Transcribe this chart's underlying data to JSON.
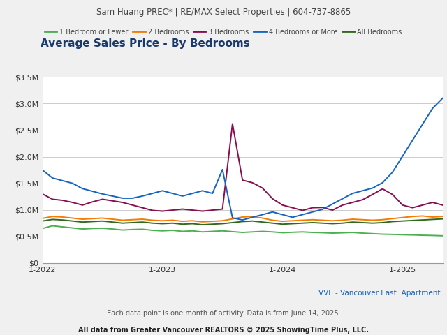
{
  "header": "Sam Huang PREC* | RE/MAX Select Properties | 604-737-8865",
  "title": "Average Sales Price - By Bedrooms",
  "footer1": "VVE - Vancouver East: Apartment",
  "footer2": "Each data point is one month of activity. Data is from June 14, 2025.",
  "footer3": "All data from Greater Vancouver REALTORS © 2025 ShowingTime Plus, LLC.",
  "legend": [
    "1 Bedroom or Fewer",
    "2 Bedrooms",
    "3 Bedrooms",
    "4 Bedrooms or More",
    "All Bedrooms"
  ],
  "colors": [
    "#4caf50",
    "#f57c00",
    "#880e4f",
    "#1565c0",
    "#33691e"
  ],
  "x_ticks_labels": [
    "1-2022",
    "1-2023",
    "1-2024",
    "1-2025"
  ],
  "ylim": [
    0,
    3500000
  ],
  "yticks": [
    0,
    500000,
    1000000,
    1500000,
    2000000,
    2500000,
    3000000,
    3500000
  ],
  "ytick_labels": [
    "$0",
    "$0.5M",
    "$1.0M",
    "$1.5M",
    "$2.0M",
    "$2.5M",
    "$3.0M",
    "$3.5M"
  ],
  "series": {
    "1br": [
      650000,
      700000,
      680000,
      660000,
      640000,
      650000,
      655000,
      640000,
      620000,
      630000,
      635000,
      615000,
      605000,
      615000,
      595000,
      605000,
      585000,
      595000,
      605000,
      590000,
      575000,
      585000,
      595000,
      585000,
      570000,
      578000,
      585000,
      575000,
      570000,
      562000,
      568000,
      575000,
      562000,
      552000,
      542000,
      538000,
      532000,
      528000,
      522000,
      518000,
      512000
    ],
    "2br": [
      840000,
      875000,
      865000,
      845000,
      825000,
      835000,
      845000,
      825000,
      805000,
      815000,
      825000,
      805000,
      795000,
      805000,
      785000,
      795000,
      775000,
      785000,
      795000,
      830000,
      865000,
      875000,
      845000,
      805000,
      785000,
      795000,
      805000,
      815000,
      805000,
      795000,
      805000,
      825000,
      815000,
      805000,
      815000,
      835000,
      855000,
      875000,
      885000,
      865000,
      875000
    ],
    "3br": [
      1300000,
      1200000,
      1180000,
      1140000,
      1090000,
      1150000,
      1200000,
      1170000,
      1140000,
      1090000,
      1040000,
      990000,
      975000,
      995000,
      1015000,
      995000,
      975000,
      995000,
      1015000,
      2620000,
      1560000,
      1510000,
      1410000,
      1210000,
      1090000,
      1040000,
      990000,
      1040000,
      1045000,
      995000,
      1090000,
      1140000,
      1190000,
      1290000,
      1395000,
      1290000,
      1090000,
      1040000,
      1090000,
      1140000,
      1090000
    ],
    "4br": [
      1750000,
      1600000,
      1550000,
      1500000,
      1400000,
      1350000,
      1300000,
      1260000,
      1220000,
      1220000,
      1260000,
      1310000,
      1360000,
      1310000,
      1260000,
      1310000,
      1360000,
      1310000,
      1760000,
      850000,
      810000,
      860000,
      910000,
      960000,
      910000,
      860000,
      910000,
      960000,
      1010000,
      1110000,
      1210000,
      1310000,
      1360000,
      1410000,
      1510000,
      1710000,
      2010000,
      2310000,
      2610000,
      2910000,
      3100000
    ],
    "all": [
      790000,
      820000,
      810000,
      790000,
      770000,
      780000,
      790000,
      770000,
      750000,
      760000,
      770000,
      750000,
      740000,
      750000,
      730000,
      740000,
      720000,
      730000,
      740000,
      760000,
      780000,
      790000,
      770000,
      750000,
      730000,
      740000,
      750000,
      760000,
      750000,
      740000,
      750000,
      770000,
      760000,
      750000,
      760000,
      780000,
      790000,
      800000,
      810000,
      820000,
      830000
    ]
  },
  "background_color": "#f0f0f0",
  "plot_bg_color": "#ffffff",
  "header_bg_color": "#e0e0e0",
  "grid_color": "#cccccc",
  "title_color": "#1a3a6b",
  "header_color": "#444444",
  "footer1_color": "#1565c0",
  "footer2_color": "#555555",
  "footer3_color": "#222222"
}
